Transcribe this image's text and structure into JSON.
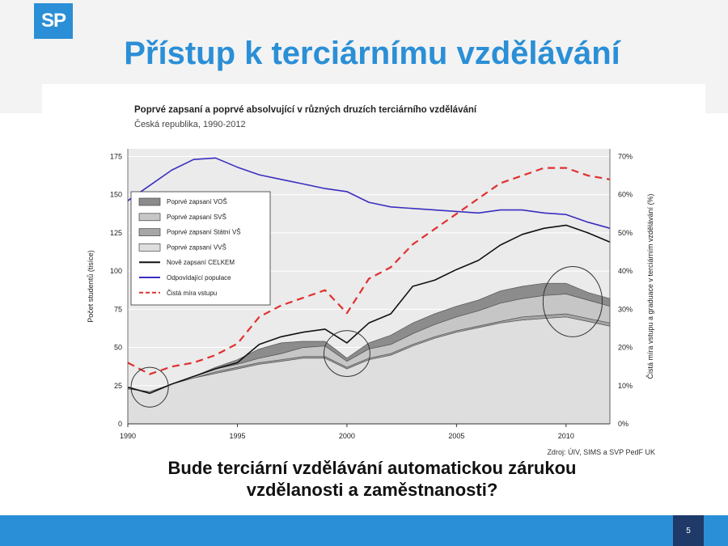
{
  "slide": {
    "logo_text": "SP",
    "title": "Přístup k terciárnímu vzdělávání",
    "question_line1": "Bude terciární vzdělávání automatickou zárukou",
    "question_line2": "vzdělanosti a zaměstnanosti?",
    "page_number": "5"
  },
  "colors": {
    "brand_blue": "#2a8fd6",
    "page_box": "#1f3a68"
  },
  "chart_data": {
    "type": "area",
    "title": "Poprvé zapsaní a poprvé absolvující v různých druzích terciárního vzdělávání",
    "subtitle": "Česká republika, 1990-2012",
    "source": "Zdroj: ÚIV, SIMS a SVP PedF UK",
    "ylabel": "Počet studentů (tisíce)",
    "y2label": "Čistá míra vstupu a graduace v terciárním vzdělávání (%)",
    "x": [
      1990,
      1991,
      1992,
      1993,
      1994,
      1995,
      1996,
      1997,
      1998,
      1999,
      2000,
      2001,
      2002,
      2003,
      2004,
      2005,
      2006,
      2007,
      2008,
      2009,
      2010,
      2011,
      2012
    ],
    "xticks": [
      1990,
      1995,
      2000,
      2005,
      2010
    ],
    "xticklabels": [
      "1990",
      "1995",
      "2000",
      "2005",
      "2010"
    ],
    "yticks": [
      0,
      25,
      50,
      75,
      100,
      125,
      150,
      175
    ],
    "yticklabels": [
      "0",
      "25",
      "50",
      "75",
      "100",
      "125",
      "150",
      "175"
    ],
    "y2ticklabels": [
      "0%",
      "10%",
      "20%",
      "30%",
      "40%",
      "50%",
      "60%",
      "70%"
    ],
    "ylim": [
      0,
      180
    ],
    "y2lim": [
      0,
      72
    ],
    "grid": true,
    "legend_position": "left",
    "stacked_areas": [
      {
        "name": "Poprvé zapsaní VVŠ",
        "color": "#dedede",
        "values": [
          23,
          21,
          26,
          30,
          33,
          36,
          39,
          41,
          43,
          43,
          36,
          42,
          45,
          51,
          56,
          60,
          63,
          66,
          68,
          69,
          70,
          67,
          64
        ]
      },
      {
        "name": "Poprvé zapsaní Státní VŠ",
        "color": "#a6a6a6",
        "values": [
          0,
          0,
          0,
          0,
          1,
          1,
          1,
          1,
          1,
          1,
          1,
          1,
          1,
          1,
          1,
          1,
          1,
          1,
          2,
          2,
          2,
          2,
          2
        ]
      },
      {
        "name": "Poprvé zapsaní SVŠ",
        "color": "#c6c6c6",
        "values": [
          0,
          0,
          0,
          1,
          2,
          2,
          3,
          4,
          6,
          7,
          4,
          6,
          6,
          7,
          8,
          9,
          10,
          12,
          12,
          13,
          13,
          12,
          11
        ]
      },
      {
        "name": "Poprvé zapsaní VOŠ",
        "color": "#8c8c8c",
        "values": [
          0,
          0,
          0,
          0,
          1,
          3,
          6,
          7,
          4,
          3,
          2,
          4,
          6,
          7,
          7,
          7,
          7,
          8,
          8,
          8,
          7,
          5,
          5
        ]
      }
    ],
    "lines": [
      {
        "name": "Nově zapsaní CELKEM",
        "color": "#111111",
        "axis": "left",
        "dash": "",
        "values": [
          24,
          20,
          26,
          31,
          36,
          40,
          52,
          57,
          60,
          62,
          53,
          66,
          72,
          90,
          94,
          101,
          107,
          117,
          124,
          128,
          130,
          125,
          119
        ]
      },
      {
        "name": "Odpovídající populace",
        "color": "#3a2fc0",
        "axis": "left",
        "dash": "",
        "values": [
          146,
          156,
          166,
          173,
          174,
          168,
          163,
          160,
          157,
          154,
          152,
          145,
          142,
          141,
          140,
          139,
          138,
          140,
          140,
          138,
          137,
          132,
          128
        ]
      },
      {
        "name": "Čistá míra vstupu",
        "color": "#e03030",
        "axis": "right",
        "dash": "9,6",
        "values": [
          16,
          13,
          15,
          16,
          18,
          21,
          28,
          31,
          33,
          35,
          29,
          38,
          41,
          47,
          51,
          55,
          59,
          63,
          65,
          67,
          67,
          65,
          64
        ]
      }
    ],
    "annotations": [
      {
        "type": "ellipse",
        "x": 1991,
        "y": 24,
        "rx_years": 0.85,
        "ry_units": 13
      },
      {
        "type": "ellipse",
        "x": 2000,
        "y": 46,
        "rx_years": 1.05,
        "ry_units": 15
      },
      {
        "type": "ellipse",
        "x": 2010.3,
        "y": 80,
        "rx_years": 1.35,
        "ry_units": 23
      }
    ]
  }
}
